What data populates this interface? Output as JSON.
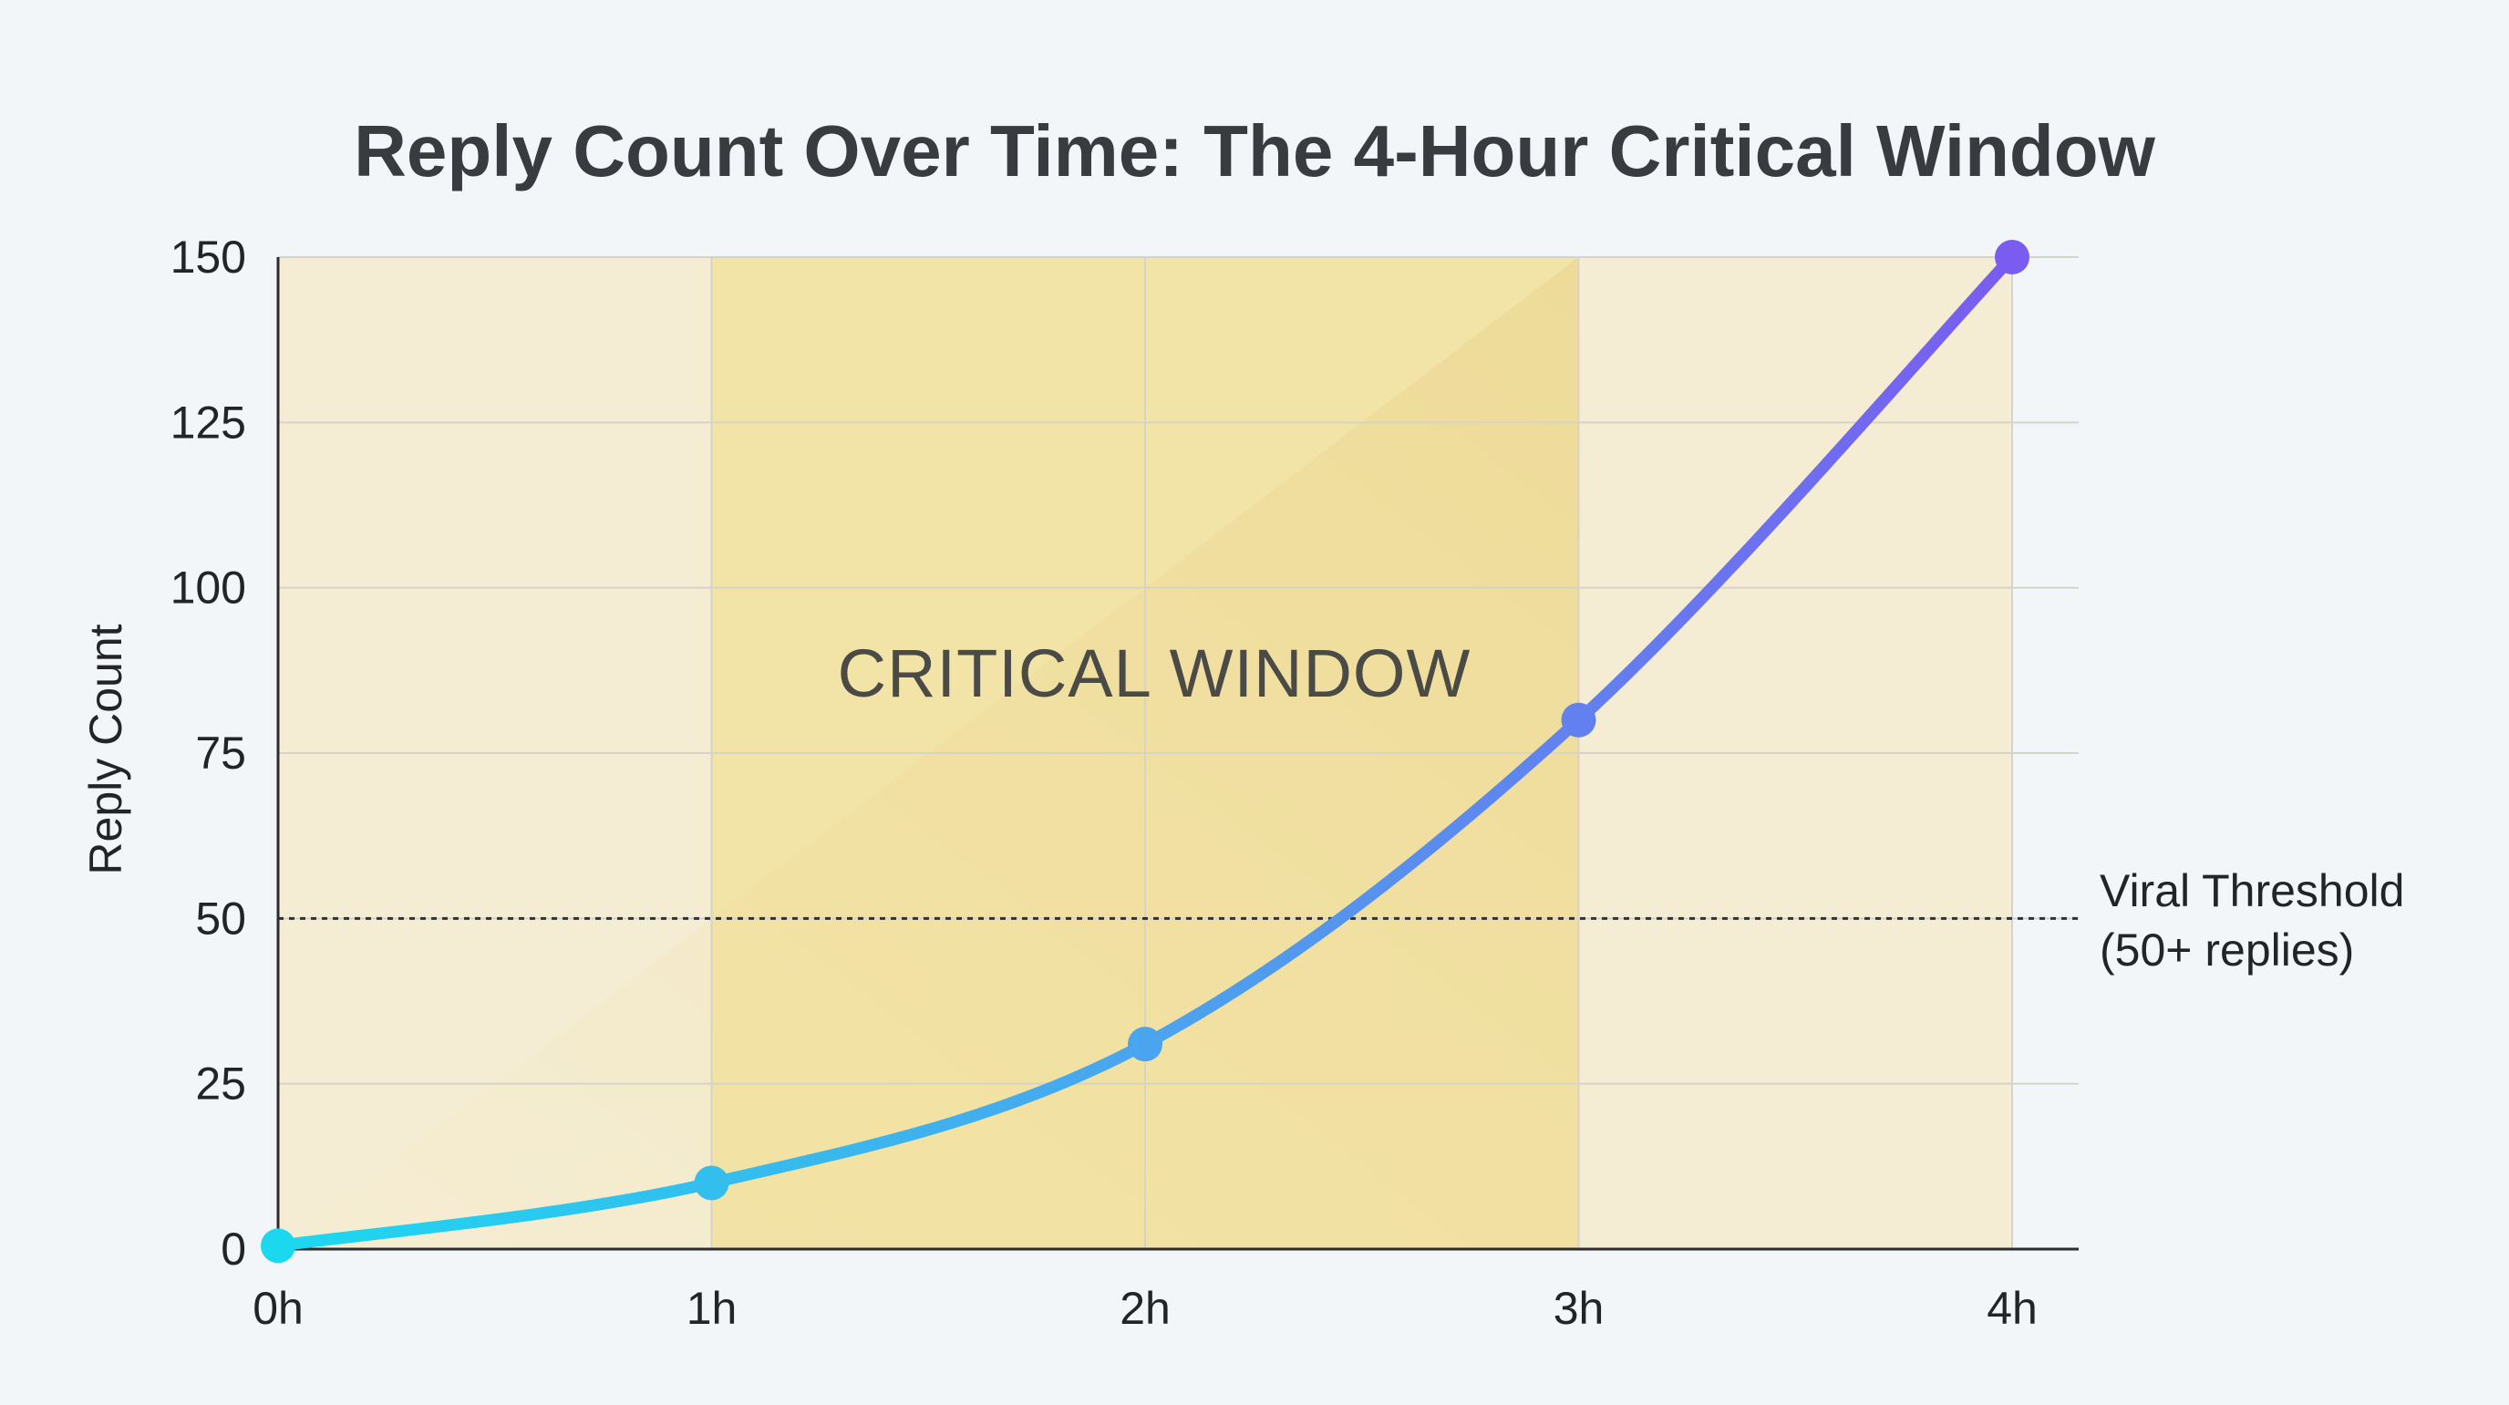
{
  "chart_data": {
    "type": "line",
    "title": "Reply Count Over Time: The 4-Hour Critical Window",
    "xlabel": "",
    "ylabel": "Reply Count",
    "x": [
      "0h",
      "1h",
      "2h",
      "3h",
      "4h"
    ],
    "x_values": [
      0,
      1,
      2,
      3,
      4
    ],
    "xlim": [
      0,
      4.15
    ],
    "ylim": [
      0,
      150
    ],
    "yticks": [
      0,
      25,
      50,
      75,
      100,
      125,
      150
    ],
    "grid": true,
    "series": [
      {
        "values": [
          0.5,
          10,
          31,
          80,
          150
        ]
      }
    ],
    "gradient_colors": [
      "#1cd8ef",
      "#4aa5ee",
      "#7a5cf0"
    ],
    "annotations": {
      "critical_window": {
        "label": "CRITICAL WINDOW",
        "x_start": 1,
        "x_end": 3
      },
      "threshold": {
        "y": 50,
        "label_line1": "Viral Threshold",
        "label_line2": "(50+ replies)"
      }
    }
  }
}
